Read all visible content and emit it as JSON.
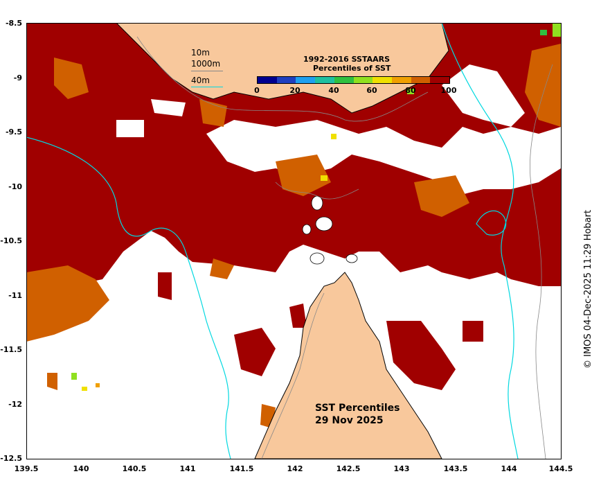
{
  "colorbar": {
    "title_line1": "1992-2016 SSTAARS",
    "title_line2": "Percentiles of SST",
    "ticks": [
      "0",
      "20",
      "40",
      "60",
      "80",
      "100"
    ],
    "colors": [
      "#00008f",
      "#1f3fbf",
      "#1fa0ef",
      "#20c0a0",
      "#30c040",
      "#90e020",
      "#f0e000",
      "#f0a000",
      "#d06000",
      "#a00000"
    ]
  },
  "contour_legend": {
    "items": [
      {
        "label": "10m",
        "color": "#888888"
      },
      {
        "label": "1000m",
        "color": "#888888"
      },
      {
        "label": "40m",
        "color": "#00d8e0"
      }
    ]
  },
  "map_title": {
    "line1": "SST Percentiles",
    "line2": "29 Nov 2025"
  },
  "credit": "© IMOS 04-Dec-2025 11:29 Hobart",
  "axes": {
    "y_ticks": [
      "-8.5",
      "-9",
      "-9.5",
      "-10",
      "-10.5",
      "-11",
      "-11.5",
      "-12",
      "-12.5"
    ],
    "x_ticks": [
      "139.5",
      "140",
      "140.5",
      "141",
      "141.5",
      "142",
      "142.5",
      "143",
      "143.5",
      "144",
      "144.5"
    ]
  },
  "colors": {
    "land": "#f8c89c",
    "ocean_high": "#a00000",
    "ocean_mid": "#d06000",
    "no_data": "#ffffff",
    "contour_40m": "#00d8e0",
    "contour_10m": "#888888"
  }
}
